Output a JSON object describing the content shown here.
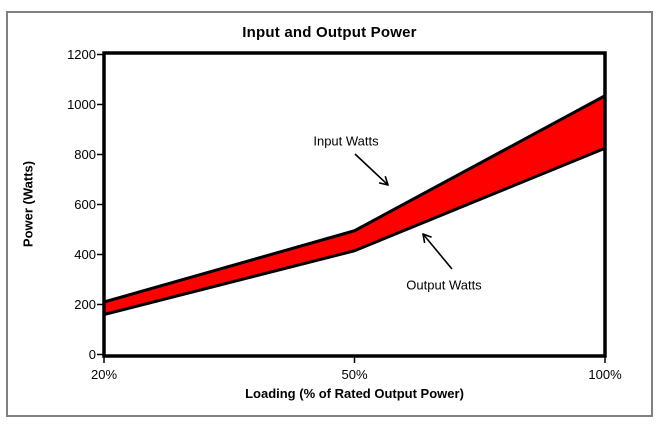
{
  "figure": {
    "background_color": "#ffffff",
    "frame_border_color": "#808080"
  },
  "chart_data": {
    "type": "area",
    "title": "Input and Output Power",
    "xlabel": "Loading (% of Rated Output Power)",
    "ylabel": "Power (Watts)",
    "categories": [
      "20%",
      "50%",
      "100%"
    ],
    "series": [
      {
        "name": "Input Watts",
        "values": [
          210,
          495,
          1035
        ]
      },
      {
        "name": "Output Watts",
        "values": [
          160,
          415,
          825
        ]
      }
    ],
    "ylim": [
      0,
      1200
    ],
    "y_ticks": [
      0,
      200,
      400,
      600,
      800,
      1000,
      1200
    ],
    "grid": false,
    "legend_position": "none",
    "band_fill_color": "#ff0000",
    "line_color": "#000000",
    "plot_border_color": "#000000"
  },
  "annotations": {
    "input": {
      "label": "Input Watts"
    },
    "output": {
      "label": "Output Watts"
    }
  }
}
